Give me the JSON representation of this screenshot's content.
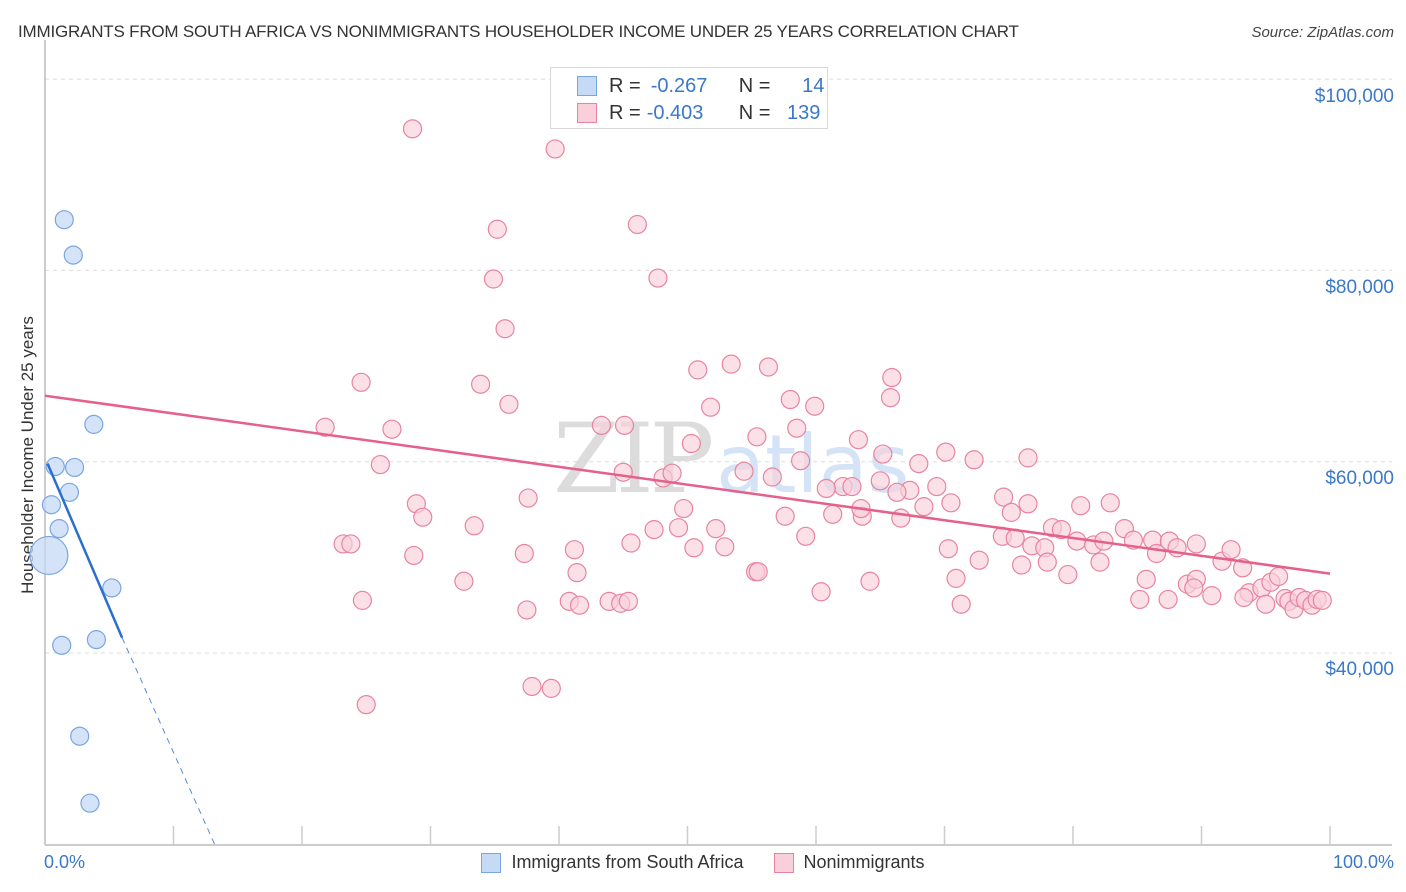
{
  "header": {
    "title": "IMMIGRANTS FROM SOUTH AFRICA VS NONIMMIGRANTS HOUSEHOLDER INCOME UNDER 25 YEARS CORRELATION CHART",
    "source": "Source: ZipAtlas.com"
  },
  "axes": {
    "ylabel": "Householder Income Under 25 years",
    "x_min_label": "0.0%",
    "x_max_label": "100.0%",
    "y_ticks": [
      "$100,000",
      "$80,000",
      "$60,000",
      "$40,000"
    ]
  },
  "legend_top": {
    "rows": [
      {
        "r_label": "R =",
        "r_value": "-0.267",
        "n_label": "N =",
        "n_value": "14"
      },
      {
        "r_label": "R =",
        "r_value": "-0.403",
        "n_label": "N =",
        "n_value": "139"
      }
    ]
  },
  "legend_bottom": {
    "items": [
      {
        "label": "Immigrants from South Africa"
      },
      {
        "label": "Nonimmigrants"
      }
    ]
  },
  "watermark": {
    "zip": "ZIP",
    "atlas": "atlas"
  },
  "colors": {
    "blue_fill": "#c5daf5",
    "blue_stroke": "#7aa6e0",
    "blue_line": "#2a6fd0",
    "pink_fill": "#f9cfdc",
    "pink_stroke": "#e8849f",
    "pink_line": "#e5608a",
    "tick_text": "#3a78c9"
  },
  "chart_data": {
    "type": "scatter",
    "title": "IMMIGRANTS FROM SOUTH AFRICA VS NONIMMIGRANTS HOUSEHOLDER INCOME UNDER 25 YEARS CORRELATION CHART",
    "xlabel": "",
    "ylabel": "Householder Income Under 25 years",
    "xlim": [
      0,
      100
    ],
    "ylim": [
      20000,
      102000
    ],
    "x_tick_labels": [
      "0.0%",
      "100.0%"
    ],
    "y_tick_labels": [
      "$40,000",
      "$60,000",
      "$80,000",
      "$100,000"
    ],
    "grid": true,
    "legend_position": "bottom",
    "series": [
      {
        "name": "Immigrants from South Africa",
        "R": -0.267,
        "N": 14,
        "points": [
          {
            "x": 1.5,
            "y": 85300
          },
          {
            "x": 2.2,
            "y": 81600
          },
          {
            "x": 3.8,
            "y": 63900
          },
          {
            "x": 0.8,
            "y": 59500
          },
          {
            "x": 2.3,
            "y": 59400
          },
          {
            "x": 0.5,
            "y": 55500
          },
          {
            "x": 1.9,
            "y": 56800
          },
          {
            "x": 1.1,
            "y": 53000
          },
          {
            "x": 0.3,
            "y": 50200,
            "size": "large"
          },
          {
            "x": 5.2,
            "y": 46800
          },
          {
            "x": 1.3,
            "y": 40800
          },
          {
            "x": 4.0,
            "y": 41400
          },
          {
            "x": 2.7,
            "y": 31300
          },
          {
            "x": 3.5,
            "y": 24300
          }
        ],
        "trend": {
          "x0": 0.2,
          "y0": 59800,
          "x1": 6.0,
          "y1": 41600,
          "dashed_to": {
            "x": 13.2,
            "y": 20000
          }
        }
      },
      {
        "name": "Nonimmigrants",
        "R": -0.403,
        "N": 139,
        "points": [
          {
            "x": 28.6,
            "y": 94800
          },
          {
            "x": 39.7,
            "y": 92700
          },
          {
            "x": 35.2,
            "y": 84300
          },
          {
            "x": 46.1,
            "y": 84800
          },
          {
            "x": 34.9,
            "y": 79100
          },
          {
            "x": 47.7,
            "y": 79200
          },
          {
            "x": 35.8,
            "y": 73900
          },
          {
            "x": 24.6,
            "y": 68300
          },
          {
            "x": 33.9,
            "y": 68100
          },
          {
            "x": 53.4,
            "y": 70200
          },
          {
            "x": 50.8,
            "y": 69600
          },
          {
            "x": 56.3,
            "y": 69900
          },
          {
            "x": 65.9,
            "y": 68800
          },
          {
            "x": 36.1,
            "y": 66000
          },
          {
            "x": 51.8,
            "y": 65700
          },
          {
            "x": 58.0,
            "y": 66500
          },
          {
            "x": 59.9,
            "y": 65800
          },
          {
            "x": 65.8,
            "y": 66700
          },
          {
            "x": 21.8,
            "y": 63600
          },
          {
            "x": 27.0,
            "y": 63400
          },
          {
            "x": 43.3,
            "y": 63800
          },
          {
            "x": 45.1,
            "y": 63800
          },
          {
            "x": 50.3,
            "y": 61900
          },
          {
            "x": 55.4,
            "y": 62600
          },
          {
            "x": 58.5,
            "y": 63500
          },
          {
            "x": 26.1,
            "y": 59700
          },
          {
            "x": 48.1,
            "y": 58300
          },
          {
            "x": 48.8,
            "y": 58800
          },
          {
            "x": 54.4,
            "y": 59000
          },
          {
            "x": 58.8,
            "y": 60100
          },
          {
            "x": 63.3,
            "y": 62300
          },
          {
            "x": 65.2,
            "y": 60800
          },
          {
            "x": 68.0,
            "y": 59800
          },
          {
            "x": 70.1,
            "y": 61000
          },
          {
            "x": 72.3,
            "y": 60200
          },
          {
            "x": 76.5,
            "y": 60400
          },
          {
            "x": 62.1,
            "y": 57400
          },
          {
            "x": 62.8,
            "y": 57400
          },
          {
            "x": 67.3,
            "y": 57000
          },
          {
            "x": 56.6,
            "y": 58400
          },
          {
            "x": 69.4,
            "y": 57400
          },
          {
            "x": 28.9,
            "y": 55600
          },
          {
            "x": 33.4,
            "y": 53300
          },
          {
            "x": 37.6,
            "y": 56200
          },
          {
            "x": 49.7,
            "y": 55100
          },
          {
            "x": 61.3,
            "y": 54500
          },
          {
            "x": 63.6,
            "y": 54300
          },
          {
            "x": 66.3,
            "y": 56800
          },
          {
            "x": 68.4,
            "y": 55300
          },
          {
            "x": 70.5,
            "y": 55700
          },
          {
            "x": 74.6,
            "y": 56300
          },
          {
            "x": 75.2,
            "y": 54700
          },
          {
            "x": 76.5,
            "y": 55600
          },
          {
            "x": 80.6,
            "y": 55400
          },
          {
            "x": 82.9,
            "y": 55700
          },
          {
            "x": 23.2,
            "y": 51400
          },
          {
            "x": 28.7,
            "y": 50200
          },
          {
            "x": 32.6,
            "y": 47500
          },
          {
            "x": 37.3,
            "y": 50400
          },
          {
            "x": 41.2,
            "y": 50800
          },
          {
            "x": 45.6,
            "y": 51500
          },
          {
            "x": 47.4,
            "y": 52900
          },
          {
            "x": 49.3,
            "y": 53100
          },
          {
            "x": 52.2,
            "y": 53000
          },
          {
            "x": 52.9,
            "y": 51100
          },
          {
            "x": 55.3,
            "y": 48500
          },
          {
            "x": 55.5,
            "y": 48500
          },
          {
            "x": 57.6,
            "y": 54300
          },
          {
            "x": 59.2,
            "y": 52200
          },
          {
            "x": 66.6,
            "y": 54100
          },
          {
            "x": 70.3,
            "y": 50900
          },
          {
            "x": 72.7,
            "y": 49700
          },
          {
            "x": 74.5,
            "y": 52200
          },
          {
            "x": 75.5,
            "y": 52000
          },
          {
            "x": 76.8,
            "y": 51200
          },
          {
            "x": 77.8,
            "y": 51000
          },
          {
            "x": 78.4,
            "y": 53100
          },
          {
            "x": 79.1,
            "y": 52900
          },
          {
            "x": 80.3,
            "y": 51700
          },
          {
            "x": 81.6,
            "y": 51300
          },
          {
            "x": 82.4,
            "y": 51700
          },
          {
            "x": 84.0,
            "y": 53000
          },
          {
            "x": 84.7,
            "y": 51800
          },
          {
            "x": 86.2,
            "y": 51800
          },
          {
            "x": 87.5,
            "y": 51700
          },
          {
            "x": 89.6,
            "y": 51400
          },
          {
            "x": 24.7,
            "y": 45500
          },
          {
            "x": 37.5,
            "y": 44500
          },
          {
            "x": 40.8,
            "y": 45400
          },
          {
            "x": 41.6,
            "y": 45000
          },
          {
            "x": 43.9,
            "y": 45400
          },
          {
            "x": 44.8,
            "y": 45200
          },
          {
            "x": 45.4,
            "y": 45400
          },
          {
            "x": 41.4,
            "y": 48400
          },
          {
            "x": 60.4,
            "y": 46400
          },
          {
            "x": 64.2,
            "y": 47500
          },
          {
            "x": 71.3,
            "y": 45100
          },
          {
            "x": 70.9,
            "y": 47800
          },
          {
            "x": 76.0,
            "y": 49200
          },
          {
            "x": 79.6,
            "y": 48200
          },
          {
            "x": 82.1,
            "y": 49500
          },
          {
            "x": 85.7,
            "y": 47700
          },
          {
            "x": 85.2,
            "y": 45600
          },
          {
            "x": 87.4,
            "y": 45600
          },
          {
            "x": 88.9,
            "y": 47200
          },
          {
            "x": 89.6,
            "y": 47700
          },
          {
            "x": 89.4,
            "y": 46800
          },
          {
            "x": 90.8,
            "y": 46000
          },
          {
            "x": 91.6,
            "y": 49600
          },
          {
            "x": 92.3,
            "y": 50800
          },
          {
            "x": 93.2,
            "y": 48900
          },
          {
            "x": 93.7,
            "y": 46300
          },
          {
            "x": 94.7,
            "y": 46800
          },
          {
            "x": 93.3,
            "y": 45800
          },
          {
            "x": 95.0,
            "y": 45100
          },
          {
            "x": 95.4,
            "y": 47400
          },
          {
            "x": 96.0,
            "y": 48000
          },
          {
            "x": 96.5,
            "y": 45700
          },
          {
            "x": 96.8,
            "y": 45400
          },
          {
            "x": 97.2,
            "y": 44600
          },
          {
            "x": 97.6,
            "y": 45800
          },
          {
            "x": 98.1,
            "y": 45500
          },
          {
            "x": 98.6,
            "y": 45000
          },
          {
            "x": 99.0,
            "y": 45600
          },
          {
            "x": 99.4,
            "y": 45500
          },
          {
            "x": 29.4,
            "y": 54200
          },
          {
            "x": 23.8,
            "y": 51400
          },
          {
            "x": 37.9,
            "y": 36500
          },
          {
            "x": 39.4,
            "y": 36300
          },
          {
            "x": 25.0,
            "y": 34600
          },
          {
            "x": 50.5,
            "y": 51000
          },
          {
            "x": 78.0,
            "y": 49500
          },
          {
            "x": 86.5,
            "y": 50400
          },
          {
            "x": 88.1,
            "y": 51000
          },
          {
            "x": 63.5,
            "y": 55100
          },
          {
            "x": 60.8,
            "y": 57200
          },
          {
            "x": 45.0,
            "y": 58900
          },
          {
            "x": 65.0,
            "y": 58000
          }
        ],
        "trend": {
          "x0": 0,
          "y0": 66900,
          "x1": 100,
          "y1": 48300
        }
      }
    ]
  }
}
